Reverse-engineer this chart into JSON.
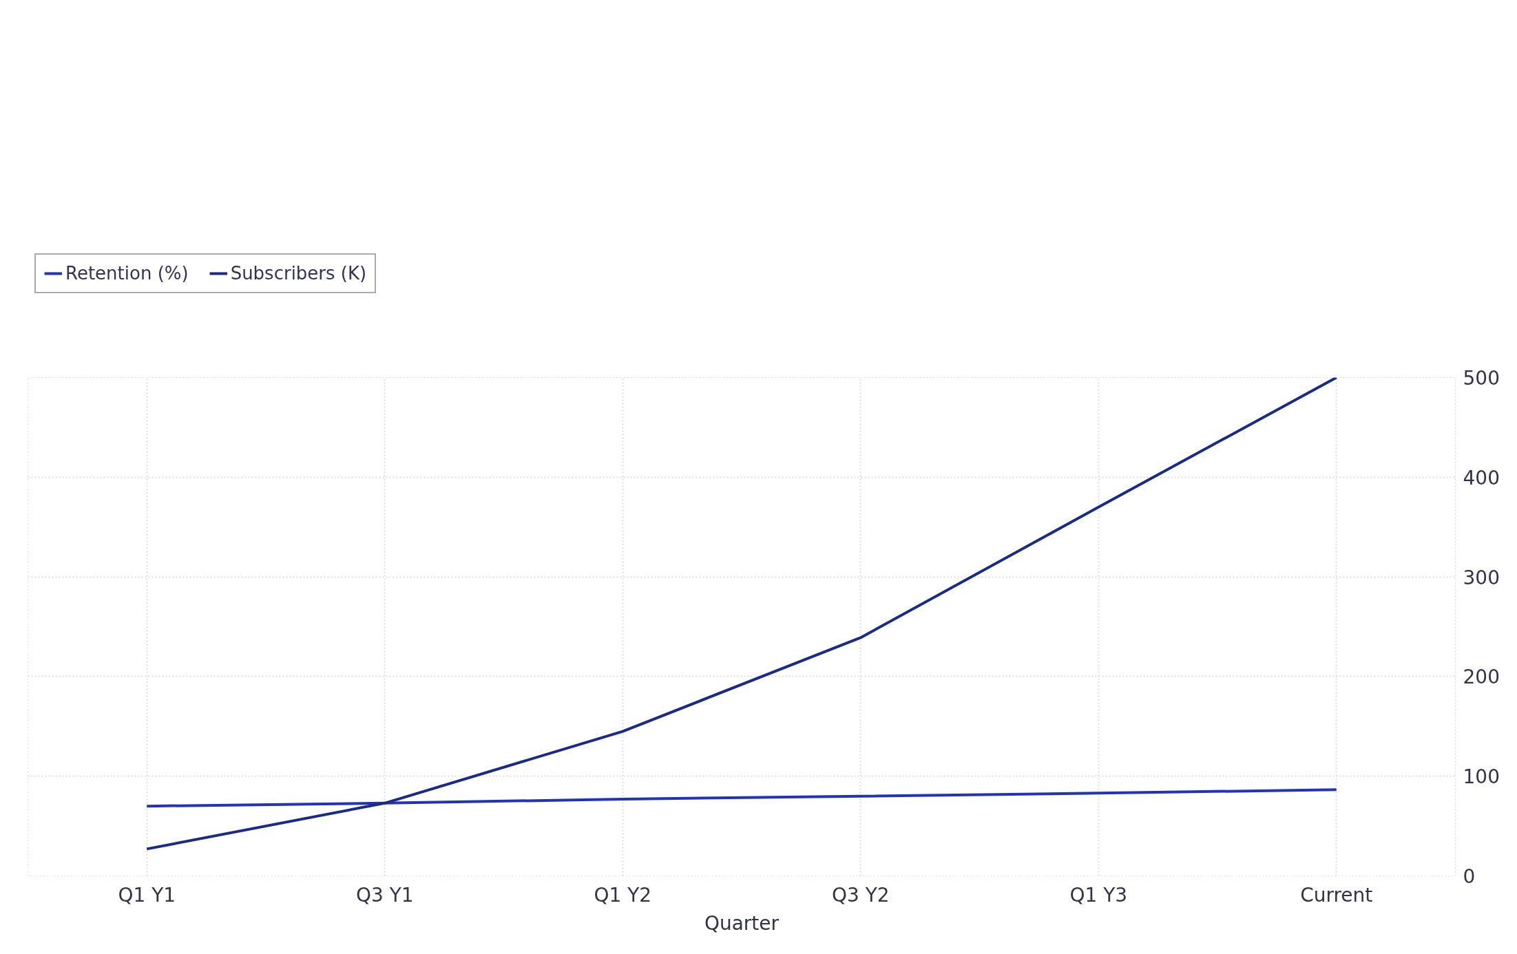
{
  "chart_data": {
    "type": "line",
    "xlabel": "Quarter",
    "categories": [
      "Q1 Y1",
      "Q3 Y1",
      "Q1 Y2",
      "Q3 Y2",
      "Q1 Y3",
      "Current"
    ],
    "series": [
      {
        "name": "Retention (%)",
        "color": "#2233bb",
        "values": [
          70,
          73,
          77,
          80,
          83,
          86.5
        ]
      },
      {
        "name": "Subscribers (K)",
        "color": "#1a2a88",
        "values": [
          27,
          73,
          145,
          239,
          370,
          500
        ]
      }
    ],
    "ylim": [
      0,
      500
    ],
    "yticks": [
      0,
      100,
      200,
      300,
      400,
      500
    ],
    "grid": true,
    "legend": "top left",
    "line_style": "solid",
    "marker": "none"
  }
}
